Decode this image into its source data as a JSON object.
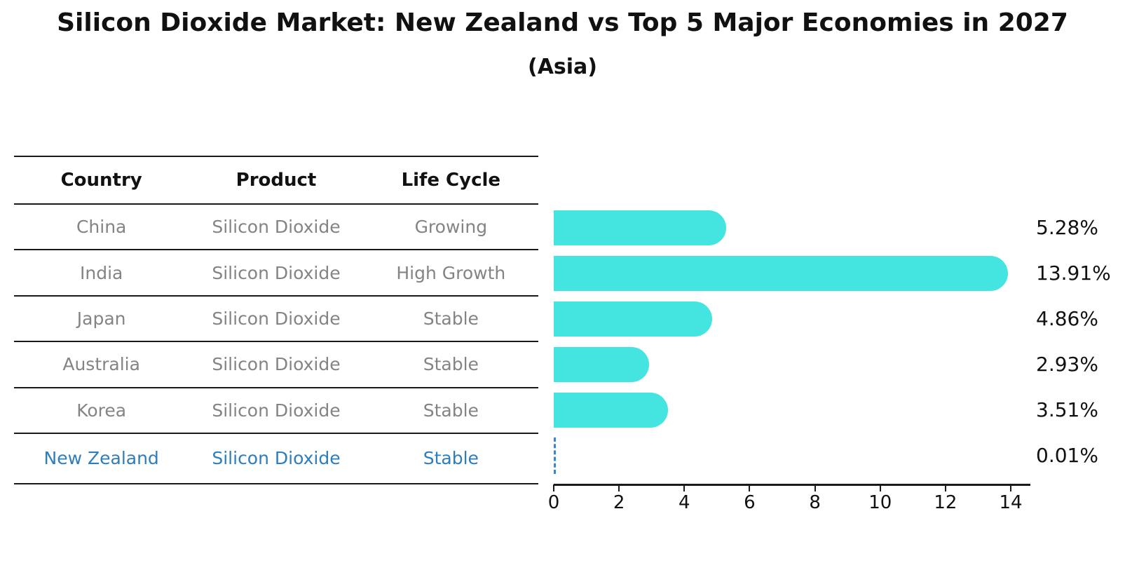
{
  "title": "Silicon Dioxide Market: New Zealand vs Top 5 Major Economies in 2027",
  "subtitle": "(Asia)",
  "table": {
    "headers": [
      "Country",
      "Product",
      "Life Cycle"
    ],
    "rows": [
      {
        "country": "China",
        "product": "Silicon Dioxide",
        "life_cycle": "Growing",
        "highlight": false
      },
      {
        "country": "India",
        "product": "Silicon Dioxide",
        "life_cycle": "High Growth",
        "highlight": false
      },
      {
        "country": "Japan",
        "product": "Silicon Dioxide",
        "life_cycle": "Stable",
        "highlight": false
      },
      {
        "country": "Australia",
        "product": "Silicon Dioxide",
        "life_cycle": "Stable",
        "highlight": false
      },
      {
        "country": "Korea",
        "product": "Silicon Dioxide",
        "life_cycle": "Stable",
        "highlight": false
      },
      {
        "country": "New Zealand",
        "product": "Silicon Dioxide",
        "life_cycle": "Stable",
        "highlight": true
      }
    ]
  },
  "chart_data": {
    "type": "bar",
    "orientation": "horizontal",
    "title": "Silicon Dioxide Market: New Zealand vs Top 5 Major Economies in 2027",
    "subtitle": "(Asia)",
    "categories": [
      "China",
      "India",
      "Japan",
      "Australia",
      "Korea",
      "New Zealand"
    ],
    "values": [
      5.28,
      13.91,
      4.86,
      2.93,
      3.51,
      0.01
    ],
    "value_labels": [
      "5.28%",
      "13.91%",
      "4.86%",
      "2.93%",
      "3.51%",
      "0.01%"
    ],
    "xlim": [
      0,
      14.6
    ],
    "x_ticks": [
      0,
      2,
      4,
      6,
      8,
      10,
      12,
      14
    ],
    "grid": false,
    "legend": false,
    "bar_color": "#44E5E1",
    "highlight_index": 5,
    "highlight_style": "dashed-blue",
    "highlight_color": "#3d87c6",
    "text_gray": "#848484",
    "text_blue": "#2e7ebc"
  }
}
